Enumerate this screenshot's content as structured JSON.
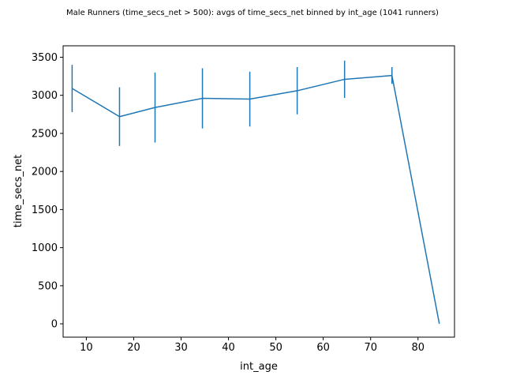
{
  "chart_data": {
    "type": "line",
    "title": "Male Runners (time_secs_net > 500): avgs of time_secs_net binned by int_age (1041 runners)",
    "xlabel": "int_age",
    "ylabel": "time_secs_net",
    "xlim": [
      5.1,
      87.7
    ],
    "ylim": [
      -175,
      3650
    ],
    "xticks": [
      10,
      20,
      30,
      40,
      50,
      60,
      70,
      80
    ],
    "yticks": [
      0,
      500,
      1000,
      1500,
      2000,
      2500,
      3000,
      3500
    ],
    "grid": false,
    "legend": "none",
    "series": [
      {
        "color": "#1f77b4",
        "x": [
          7,
          17,
          24.5,
          34.5,
          44.5,
          54.5,
          64.5,
          74.5,
          84.5
        ],
        "y": [
          3090,
          2720,
          2840,
          2960,
          2950,
          3060,
          3210,
          3260,
          0
        ],
        "yerr": [
          310,
          385,
          460,
          395,
          360,
          310,
          245,
          110,
          null
        ]
      }
    ]
  }
}
